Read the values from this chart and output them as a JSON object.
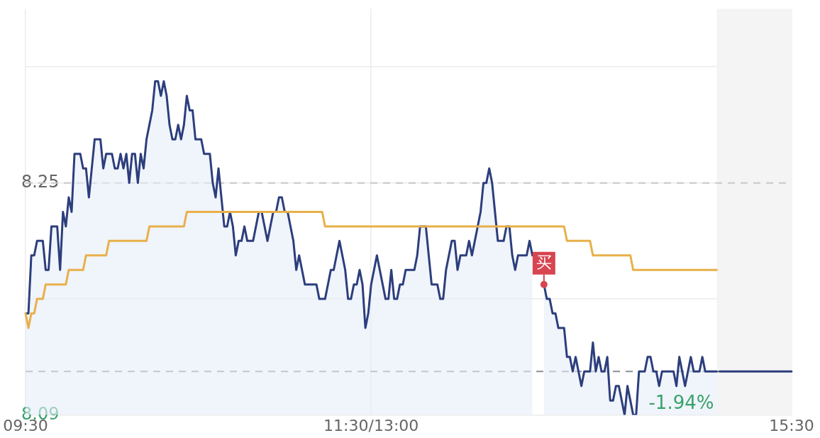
{
  "chart_data": {
    "type": "line",
    "categories": [
      "09:30",
      null,
      null,
      null,
      null,
      null,
      null,
      null,
      null,
      null,
      null,
      null,
      null,
      null,
      null,
      null,
      null,
      null,
      null,
      null,
      null,
      null,
      null,
      null,
      null,
      null,
      null,
      null,
      null,
      null,
      null,
      null,
      null,
      null,
      null,
      null,
      null,
      null,
      null,
      null,
      null,
      null,
      null,
      null,
      null,
      null,
      null,
      null,
      null,
      null,
      null,
      null,
      null,
      null,
      null,
      null,
      null,
      null,
      null,
      null,
      null,
      null,
      null,
      null,
      null,
      null,
      null,
      null,
      null,
      null,
      null,
      null,
      null,
      null,
      null,
      null,
      null,
      null,
      null,
      null,
      null,
      null,
      null,
      null,
      null,
      null,
      null,
      null,
      null,
      null,
      null,
      null,
      null,
      null,
      null,
      null,
      null,
      null,
      null,
      null,
      null,
      null,
      null,
      null,
      null,
      null,
      null,
      null,
      null,
      null,
      null,
      null,
      null,
      null,
      null,
      null,
      null,
      null,
      null,
      null,
      "11:30/13:00",
      null,
      null,
      null,
      null,
      null,
      null,
      null,
      null,
      null,
      null,
      null,
      null,
      null,
      null,
      null,
      null,
      null,
      null,
      null,
      null,
      null,
      null,
      null,
      null,
      null,
      null,
      null,
      null,
      null,
      null,
      null,
      null,
      null,
      null,
      null,
      null,
      null,
      null,
      null,
      null,
      null,
      null,
      null,
      null,
      null,
      null,
      null,
      null,
      null,
      null,
      null,
      null,
      null,
      null,
      null,
      null,
      null,
      null,
      null,
      null,
      null,
      null,
      null,
      null,
      null,
      null,
      null,
      null,
      null,
      null,
      null,
      null,
      null,
      null,
      null,
      null,
      null,
      null,
      null,
      null,
      null,
      null,
      null,
      null,
      null,
      null,
      null,
      null,
      null,
      null,
      null,
      null,
      null,
      null,
      null,
      null,
      null,
      null,
      null,
      null,
      null,
      null,
      null,
      null,
      null,
      null,
      null,
      null,
      null,
      null,
      null,
      null,
      null,
      null,
      null,
      null,
      null,
      null,
      null,
      null,
      null,
      null,
      null,
      null,
      null,
      null,
      null,
      null,
      null,
      null,
      null,
      null,
      null,
      null,
      null,
      null,
      null,
      null,
      null,
      null,
      null,
      null,
      null,
      null,
      null,
      "15:30"
    ],
    "ylim": [
      8.09,
      8.37
    ],
    "yticks": [
      8.09,
      {
        "value": 8.17,
        "label": null
      },
      8.25,
      {
        "value": 8.33,
        "label": null
      }
    ],
    "grid": true,
    "legend": false,
    "marker": "none",
    "line_style": "solid",
    "series": [
      {
        "type": "area",
        "color": "#2c3e7c",
        "values": [
          8.16,
          8.16,
          8.2,
          8.2,
          8.21,
          8.21,
          8.21,
          8.19,
          8.19,
          8.22,
          8.22,
          8.22,
          8.19,
          8.23,
          8.22,
          8.24,
          8.23,
          8.27,
          8.27,
          8.27,
          8.26,
          8.26,
          8.24,
          8.26,
          8.28,
          8.28,
          8.28,
          8.26,
          8.27,
          8.27,
          8.27,
          8.26,
          8.26,
          8.27,
          8.26,
          8.27,
          8.25,
          8.27,
          8.27,
          8.25,
          8.27,
          8.26,
          8.28,
          8.29,
          8.3,
          8.32,
          8.32,
          8.31,
          8.32,
          8.31,
          8.29,
          8.28,
          8.28,
          8.29,
          8.28,
          8.29,
          8.31,
          8.3,
          8.3,
          8.28,
          8.28,
          8.28,
          8.27,
          8.27,
          8.27,
          8.25,
          8.24,
          8.26,
          8.24,
          8.22,
          8.22,
          8.23,
          8.22,
          8.2,
          8.21,
          8.21,
          8.22,
          8.21,
          8.21,
          8.21,
          8.22,
          8.23,
          8.23,
          8.22,
          8.21,
          8.22,
          8.23,
          8.23,
          8.24,
          8.24,
          8.23,
          8.23,
          8.22,
          8.21,
          8.19,
          8.2,
          8.19,
          8.18,
          8.18,
          8.18,
          8.18,
          8.18,
          8.17,
          8.17,
          8.17,
          8.18,
          8.19,
          8.19,
          8.2,
          8.21,
          8.2,
          8.19,
          8.17,
          8.17,
          8.18,
          8.18,
          8.19,
          8.18,
          8.15,
          8.16,
          8.18,
          8.19,
          8.2,
          8.19,
          8.18,
          8.17,
          8.17,
          8.19,
          8.17,
          8.17,
          8.18,
          8.18,
          8.19,
          8.19,
          8.19,
          8.19,
          8.2,
          8.22,
          8.22,
          8.22,
          8.2,
          8.18,
          8.18,
          8.18,
          8.17,
          8.17,
          8.19,
          8.2,
          8.21,
          8.21,
          8.19,
          8.2,
          8.2,
          8.2,
          8.21,
          8.2,
          8.21,
          8.22,
          8.23,
          8.25,
          8.25,
          8.26,
          8.25,
          8.23,
          8.21,
          8.21,
          8.21,
          8.22,
          8.22,
          8.2,
          8.19,
          8.2,
          8.2,
          8.2,
          8.2,
          8.21,
          8.2,
          null,
          null,
          null,
          8.18,
          8.17,
          8.17,
          8.16,
          8.16,
          8.15,
          8.15,
          8.15,
          8.13,
          8.13,
          8.12,
          8.13,
          8.12,
          8.11,
          8.12,
          8.12,
          8.12,
          8.14,
          8.12,
          8.13,
          8.12,
          8.12,
          8.13,
          8.1,
          8.1,
          8.11,
          8.11,
          8.1,
          8.09,
          8.11,
          8.1,
          8.09,
          8.09,
          8.12,
          8.12,
          8.12,
          8.13,
          8.13,
          8.12,
          8.12,
          8.11,
          8.12,
          8.12,
          8.12,
          8.12,
          8.12,
          8.11,
          8.13,
          8.12,
          8.11,
          8.12,
          8.13,
          8.12,
          8.12,
          8.12,
          8.13,
          8.12,
          8.12,
          8.12,
          8.12,
          8.12,
          null,
          null,
          null,
          null,
          null,
          null,
          null,
          null,
          null,
          null,
          null,
          null,
          null,
          null,
          null,
          null,
          null,
          null,
          null,
          null,
          null,
          null,
          null,
          null,
          null,
          null
        ]
      },
      {
        "color": "#e8b04a",
        "values": [
          8.16,
          8.15,
          8.16,
          8.16,
          8.17,
          8.17,
          8.17,
          8.18,
          8.18,
          8.18,
          8.18,
          8.18,
          8.18,
          8.18,
          8.18,
          8.19,
          8.19,
          8.19,
          8.19,
          8.19,
          8.19,
          8.2,
          8.2,
          8.2,
          8.2,
          8.2,
          8.2,
          8.2,
          8.2,
          8.21,
          8.21,
          8.21,
          8.21,
          8.21,
          8.21,
          8.21,
          8.21,
          8.21,
          8.21,
          8.21,
          8.21,
          8.21,
          8.21,
          8.22,
          8.22,
          8.22,
          8.22,
          8.22,
          8.22,
          8.22,
          8.22,
          8.22,
          8.22,
          8.22,
          8.22,
          8.22,
          8.23,
          8.23,
          8.23,
          8.23,
          8.23,
          8.23,
          8.23,
          8.23,
          8.23,
          8.23,
          8.23,
          8.23,
          8.23,
          8.23,
          8.23,
          8.23,
          8.23,
          8.23,
          8.23,
          8.23,
          8.23,
          8.23,
          8.23,
          8.23,
          8.23,
          8.23,
          8.23,
          8.23,
          8.23,
          8.23,
          8.23,
          8.23,
          8.23,
          8.23,
          8.23,
          8.23,
          8.23,
          8.23,
          8.23,
          8.23,
          8.23,
          8.23,
          8.23,
          8.23,
          8.23,
          8.23,
          8.23,
          8.23,
          8.22,
          8.22,
          8.22,
          8.22,
          8.22,
          8.22,
          8.22,
          8.22,
          8.22,
          8.22,
          8.22,
          8.22,
          8.22,
          8.22,
          8.22,
          8.22,
          8.22,
          8.22,
          8.22,
          8.22,
          8.22,
          8.22,
          8.22,
          8.22,
          8.22,
          8.22,
          8.22,
          8.22,
          8.22,
          8.22,
          8.22,
          8.22,
          8.22,
          8.22,
          8.22,
          8.22,
          8.22,
          8.22,
          8.22,
          8.22,
          8.22,
          8.22,
          8.22,
          8.22,
          8.22,
          8.22,
          8.22,
          8.22,
          8.22,
          8.22,
          8.22,
          8.22,
          8.22,
          8.22,
          8.22,
          8.22,
          8.22,
          8.22,
          8.22,
          8.22,
          8.22,
          8.22,
          8.22,
          8.22,
          8.22,
          8.22,
          8.22,
          8.22,
          8.22,
          8.22,
          8.22,
          8.22,
          8.22,
          8.22,
          8.22,
          8.22,
          8.22,
          8.22,
          8.22,
          8.22,
          8.22,
          8.22,
          8.22,
          8.22,
          8.21,
          8.21,
          8.21,
          8.21,
          8.21,
          8.21,
          8.21,
          8.21,
          8.21,
          8.2,
          8.2,
          8.2,
          8.2,
          8.2,
          8.2,
          8.2,
          8.2,
          8.2,
          8.2,
          8.2,
          8.2,
          8.2,
          8.2,
          8.19,
          8.19,
          8.19,
          8.19,
          8.19,
          8.19,
          8.19,
          8.19,
          8.19,
          8.19,
          8.19,
          8.19,
          8.19,
          8.19,
          8.19,
          8.19,
          8.19,
          8.19,
          8.19,
          8.19,
          8.19,
          8.19,
          8.19,
          8.19,
          8.19,
          8.19,
          8.19,
          8.19,
          8.19,
          8.19,
          null,
          null,
          null,
          null,
          null,
          null,
          null,
          null,
          null,
          null,
          null,
          null,
          null,
          null,
          null,
          null,
          null,
          null,
          null,
          null,
          null,
          null,
          null,
          null,
          null,
          null
        ]
      },
      {
        "color": "#2c3e7c",
        "values": [
          null,
          null,
          null,
          null,
          null,
          null,
          null,
          null,
          null,
          null,
          null,
          null,
          null,
          null,
          null,
          null,
          null,
          null,
          null,
          null,
          null,
          null,
          null,
          null,
          null,
          null,
          null,
          null,
          null,
          null,
          null,
          null,
          null,
          null,
          null,
          null,
          null,
          null,
          null,
          null,
          null,
          null,
          null,
          null,
          null,
          null,
          null,
          null,
          null,
          null,
          null,
          null,
          null,
          null,
          null,
          null,
          null,
          null,
          null,
          null,
          null,
          null,
          null,
          null,
          null,
          null,
          null,
          null,
          null,
          null,
          null,
          null,
          null,
          null,
          null,
          null,
          null,
          null,
          null,
          null,
          null,
          null,
          null,
          null,
          null,
          null,
          null,
          null,
          null,
          null,
          null,
          null,
          null,
          null,
          null,
          null,
          null,
          null,
          null,
          null,
          null,
          null,
          null,
          null,
          null,
          null,
          null,
          null,
          null,
          null,
          null,
          null,
          null,
          null,
          null,
          null,
          null,
          null,
          null,
          null,
          null,
          null,
          null,
          null,
          null,
          null,
          null,
          null,
          null,
          null,
          null,
          null,
          null,
          null,
          null,
          null,
          null,
          null,
          null,
          null,
          null,
          null,
          null,
          null,
          null,
          null,
          null,
          null,
          null,
          null,
          null,
          null,
          null,
          null,
          null,
          null,
          null,
          null,
          null,
          null,
          null,
          null,
          null,
          null,
          null,
          null,
          null,
          null,
          null,
          null,
          null,
          null,
          null,
          null,
          null,
          null,
          null,
          null,
          null,
          null,
          null,
          null,
          null,
          null,
          null,
          null,
          null,
          null,
          null,
          null,
          null,
          null,
          null,
          null,
          null,
          null,
          null,
          null,
          null,
          null,
          null,
          null,
          null,
          null,
          null,
          null,
          null,
          null,
          null,
          null,
          null,
          null,
          null,
          null,
          null,
          null,
          null,
          null,
          null,
          null,
          null,
          null,
          null,
          null,
          null,
          null,
          null,
          null,
          null,
          null,
          null,
          null,
          null,
          null,
          null,
          null,
          null,
          null,
          null,
          null,
          null,
          8.12,
          8.12,
          8.12,
          8.12,
          8.12,
          8.12,
          8.12,
          8.12,
          8.12,
          8.12,
          8.12,
          8.12,
          8.12,
          8.12,
          8.12,
          8.12,
          8.12,
          8.12,
          8.12,
          8.12,
          8.12,
          8.12,
          8.12,
          8.12,
          8.12,
          8.12
        ]
      },
      {
        "type": "scatter",
        "marker": "circle",
        "color": "#d64550",
        "values": [
          null,
          null,
          null,
          null,
          null,
          null,
          null,
          null,
          null,
          null,
          null,
          null,
          null,
          null,
          null,
          null,
          null,
          null,
          null,
          null,
          null,
          null,
          null,
          null,
          null,
          null,
          null,
          null,
          null,
          null,
          null,
          null,
          null,
          null,
          null,
          null,
          null,
          null,
          null,
          null,
          null,
          null,
          null,
          null,
          null,
          null,
          null,
          null,
          null,
          null,
          null,
          null,
          null,
          null,
          null,
          null,
          null,
          null,
          null,
          null,
          null,
          null,
          null,
          null,
          null,
          null,
          null,
          null,
          null,
          null,
          null,
          null,
          null,
          null,
          null,
          null,
          null,
          null,
          null,
          null,
          null,
          null,
          null,
          null,
          null,
          null,
          null,
          null,
          null,
          null,
          null,
          null,
          null,
          null,
          null,
          null,
          null,
          null,
          null,
          null,
          null,
          null,
          null,
          null,
          null,
          null,
          null,
          null,
          null,
          null,
          null,
          null,
          null,
          null,
          null,
          null,
          null,
          null,
          null,
          null,
          null,
          null,
          null,
          null,
          null,
          null,
          null,
          null,
          null,
          null,
          null,
          null,
          null,
          null,
          null,
          null,
          null,
          null,
          null,
          null,
          null,
          null,
          null,
          null,
          null,
          null,
          null,
          null,
          null,
          null,
          null,
          null,
          null,
          null,
          null,
          null,
          null,
          null,
          null,
          null,
          null,
          null,
          null,
          null,
          null,
          null,
          null,
          null,
          null,
          null,
          null,
          null,
          null,
          null,
          null,
          null,
          null,
          null,
          null,
          null,
          8.18,
          null,
          null,
          null,
          null,
          null,
          null,
          null,
          null,
          null,
          null,
          null,
          null,
          null,
          null,
          null,
          null,
          null,
          null,
          null,
          null,
          null,
          null,
          null,
          null,
          null,
          null,
          null,
          null,
          null,
          null,
          null,
          null,
          null,
          null,
          null,
          null,
          null,
          null,
          null,
          null,
          null,
          null,
          null,
          null,
          null,
          null,
          null,
          null,
          null,
          null,
          null,
          null,
          null,
          null,
          null,
          null,
          null,
          null,
          null,
          null,
          null,
          null,
          null,
          null,
          null,
          null,
          null,
          null,
          null,
          null,
          null,
          null,
          null,
          null,
          null,
          null,
          null,
          null,
          null,
          null,
          null,
          null,
          null,
          null,
          null,
          null
        ],
        "value_labels": [
          null,
          null,
          null,
          null,
          null,
          null,
          null,
          null,
          null,
          null,
          null,
          null,
          null,
          null,
          null,
          null,
          null,
          null,
          null,
          null,
          null,
          null,
          null,
          null,
          null,
          null,
          null,
          null,
          null,
          null,
          null,
          null,
          null,
          null,
          null,
          null,
          null,
          null,
          null,
          null,
          null,
          null,
          null,
          null,
          null,
          null,
          null,
          null,
          null,
          null,
          null,
          null,
          null,
          null,
          null,
          null,
          null,
          null,
          null,
          null,
          null,
          null,
          null,
          null,
          null,
          null,
          null,
          null,
          null,
          null,
          null,
          null,
          null,
          null,
          null,
          null,
          null,
          null,
          null,
          null,
          null,
          null,
          null,
          null,
          null,
          null,
          null,
          null,
          null,
          null,
          null,
          null,
          null,
          null,
          null,
          null,
          null,
          null,
          null,
          null,
          null,
          null,
          null,
          null,
          null,
          null,
          null,
          null,
          null,
          null,
          null,
          null,
          null,
          null,
          null,
          null,
          null,
          null,
          null,
          null,
          null,
          null,
          null,
          null,
          null,
          null,
          null,
          null,
          null,
          null,
          null,
          null,
          null,
          null,
          null,
          null,
          null,
          null,
          null,
          null,
          null,
          null,
          null,
          null,
          null,
          null,
          null,
          null,
          null,
          null,
          null,
          null,
          null,
          null,
          null,
          null,
          null,
          null,
          null,
          null,
          null,
          null,
          null,
          null,
          null,
          null,
          null,
          null,
          null,
          null,
          null,
          null,
          null,
          null,
          null,
          null,
          null,
          null,
          null,
          null,
          "买",
          null,
          null,
          null,
          null,
          null,
          null,
          null,
          null,
          null,
          null,
          null,
          null,
          null,
          null,
          null,
          null,
          null,
          null,
          null,
          null,
          null,
          null,
          null,
          null,
          null,
          null,
          null,
          null,
          null,
          null,
          null,
          null,
          null,
          null,
          null,
          null,
          null,
          null,
          null,
          null,
          null,
          null,
          null,
          null,
          null,
          null,
          null,
          null,
          null,
          null,
          null,
          null,
          null,
          null,
          null,
          null,
          null,
          null,
          null,
          null,
          null,
          null,
          null,
          null,
          null,
          null,
          null,
          null,
          null,
          null,
          null,
          null,
          null,
          null,
          null,
          null,
          null,
          null,
          null,
          null,
          null,
          null,
          null,
          null,
          null,
          null
        ]
      }
    ],
    "ref_lines": [
      {
        "axis": "y",
        "value": 8.25,
        "color": "#c8c8c8",
        "line_style": "dashed"
      },
      {
        "axis": "y",
        "value": 8.12,
        "color": "#8a8f99",
        "line_style": "dashed"
      }
    ],
    "annotations": [
      "-1.94%"
    ]
  }
}
